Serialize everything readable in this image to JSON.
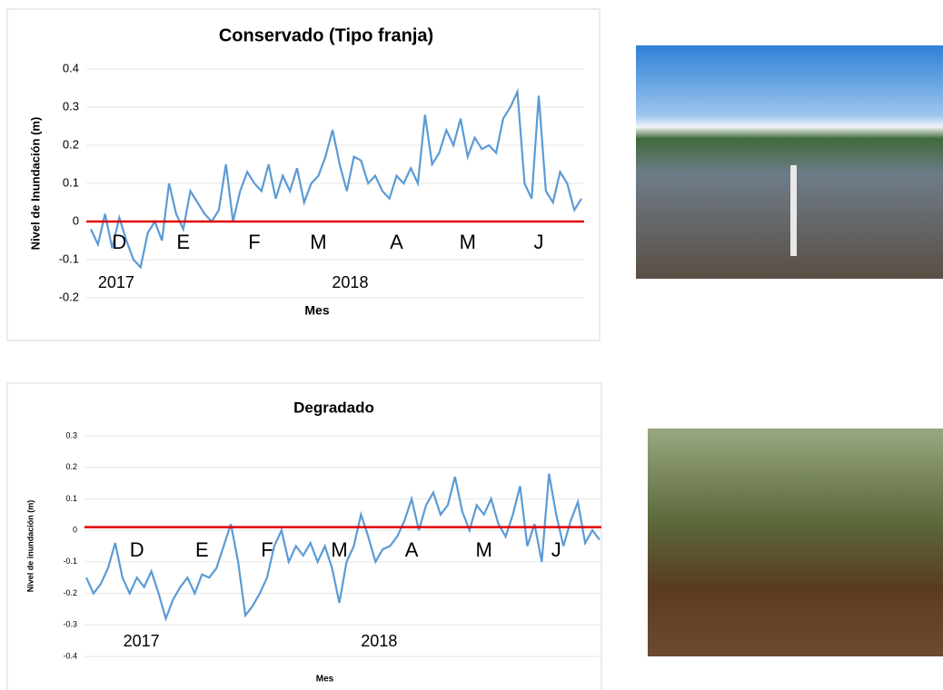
{
  "chart_data": [
    {
      "type": "line",
      "title": "Conservado (Tipo franja)",
      "x_label": "Mes",
      "y_label": "Nivel de Inundación (m)",
      "categories": [
        null,
        null,
        null,
        null,
        "D",
        null,
        null,
        null,
        null,
        null,
        null,
        null,
        null,
        "E",
        null,
        null,
        null,
        null,
        null,
        null,
        null,
        null,
        null,
        "F",
        null,
        null,
        null,
        null,
        null,
        null,
        null,
        null,
        "M",
        null,
        null,
        null,
        null,
        null,
        null,
        null,
        null,
        null,
        null,
        "A",
        null,
        null,
        null,
        null,
        null,
        null,
        null,
        null,
        null,
        "M",
        null,
        null,
        null,
        null,
        null,
        null,
        null,
        null,
        null,
        "J",
        null,
        null,
        null,
        null,
        null,
        null
      ],
      "values": [
        -0.02,
        -0.06,
        0.02,
        -0.07,
        0.01,
        -0.05,
        -0.1,
        -0.12,
        -0.03,
        0.0,
        -0.05,
        0.1,
        0.02,
        -0.02,
        0.08,
        0.05,
        0.02,
        0.0,
        0.03,
        0.15,
        0.0,
        0.08,
        0.13,
        0.1,
        0.08,
        0.15,
        0.06,
        0.12,
        0.08,
        0.14,
        0.05,
        0.1,
        0.12,
        0.17,
        0.24,
        0.15,
        0.08,
        0.17,
        0.16,
        0.1,
        0.12,
        0.08,
        0.06,
        0.12,
        0.1,
        0.14,
        0.1,
        0.28,
        0.15,
        0.18,
        0.24,
        0.2,
        0.27,
        0.17,
        0.22,
        0.19,
        0.2,
        0.18,
        0.27,
        0.3,
        0.34,
        0.1,
        0.06,
        0.33,
        0.08,
        0.05,
        0.13,
        0.1,
        0.03,
        0.06
      ],
      "color": "#5b9bd5",
      "annotations": [
        "2017",
        "2018"
      ],
      "reference_line": {
        "value": 0,
        "color": "#e00000"
      },
      "ylim": [
        -0.2,
        0.4
      ],
      "yticks": [
        -0.2,
        -0.1,
        0,
        0.1,
        0.2,
        0.3,
        0.4
      ],
      "grid": true
    },
    {
      "type": "line",
      "title": "Degradado",
      "x_label": "Mes",
      "y_label": "Nivel de inundación (m)",
      "categories": [
        null,
        null,
        null,
        null,
        null,
        null,
        null,
        "D",
        null,
        null,
        null,
        null,
        null,
        null,
        null,
        null,
        "E",
        null,
        null,
        null,
        null,
        null,
        null,
        null,
        null,
        "F",
        null,
        null,
        null,
        null,
        null,
        null,
        null,
        null,
        null,
        "M",
        null,
        null,
        null,
        null,
        null,
        null,
        null,
        null,
        null,
        "A",
        null,
        null,
        null,
        null,
        null,
        null,
        null,
        null,
        null,
        "M",
        null,
        null,
        null,
        null,
        null,
        null,
        null,
        null,
        null,
        "J",
        null,
        null,
        null,
        null,
        null,
        null
      ],
      "values": [
        -0.15,
        -0.2,
        -0.17,
        -0.12,
        -0.04,
        -0.15,
        -0.2,
        -0.15,
        -0.18,
        -0.13,
        -0.2,
        -0.28,
        -0.22,
        -0.18,
        -0.15,
        -0.2,
        -0.14,
        -0.15,
        -0.12,
        -0.05,
        0.02,
        -0.1,
        -0.27,
        -0.24,
        -0.2,
        -0.15,
        -0.05,
        0.0,
        -0.1,
        -0.05,
        -0.08,
        -0.04,
        -0.1,
        -0.05,
        -0.12,
        -0.23,
        -0.1,
        -0.05,
        0.05,
        -0.02,
        -0.1,
        -0.06,
        -0.05,
        -0.02,
        0.03,
        0.1,
        0.0,
        0.08,
        0.12,
        0.05,
        0.08,
        0.17,
        0.06,
        0.0,
        0.08,
        0.05,
        0.1,
        0.02,
        -0.02,
        0.05,
        0.14,
        -0.05,
        0.02,
        -0.1,
        0.18,
        0.05,
        -0.05,
        0.03,
        0.09,
        -0.04,
        0.0,
        -0.03
      ],
      "color": "#5b9bd5",
      "annotations": [
        "2017",
        "2018"
      ],
      "reference_line": {
        "value": 0.01,
        "color": "#e00000"
      },
      "ylim": [
        -0.4,
        0.3
      ],
      "yticks": [
        -0.4,
        -0.3,
        -0.2,
        -0.1,
        0,
        0.1,
        0.2,
        0.3
      ],
      "grid": true
    }
  ]
}
